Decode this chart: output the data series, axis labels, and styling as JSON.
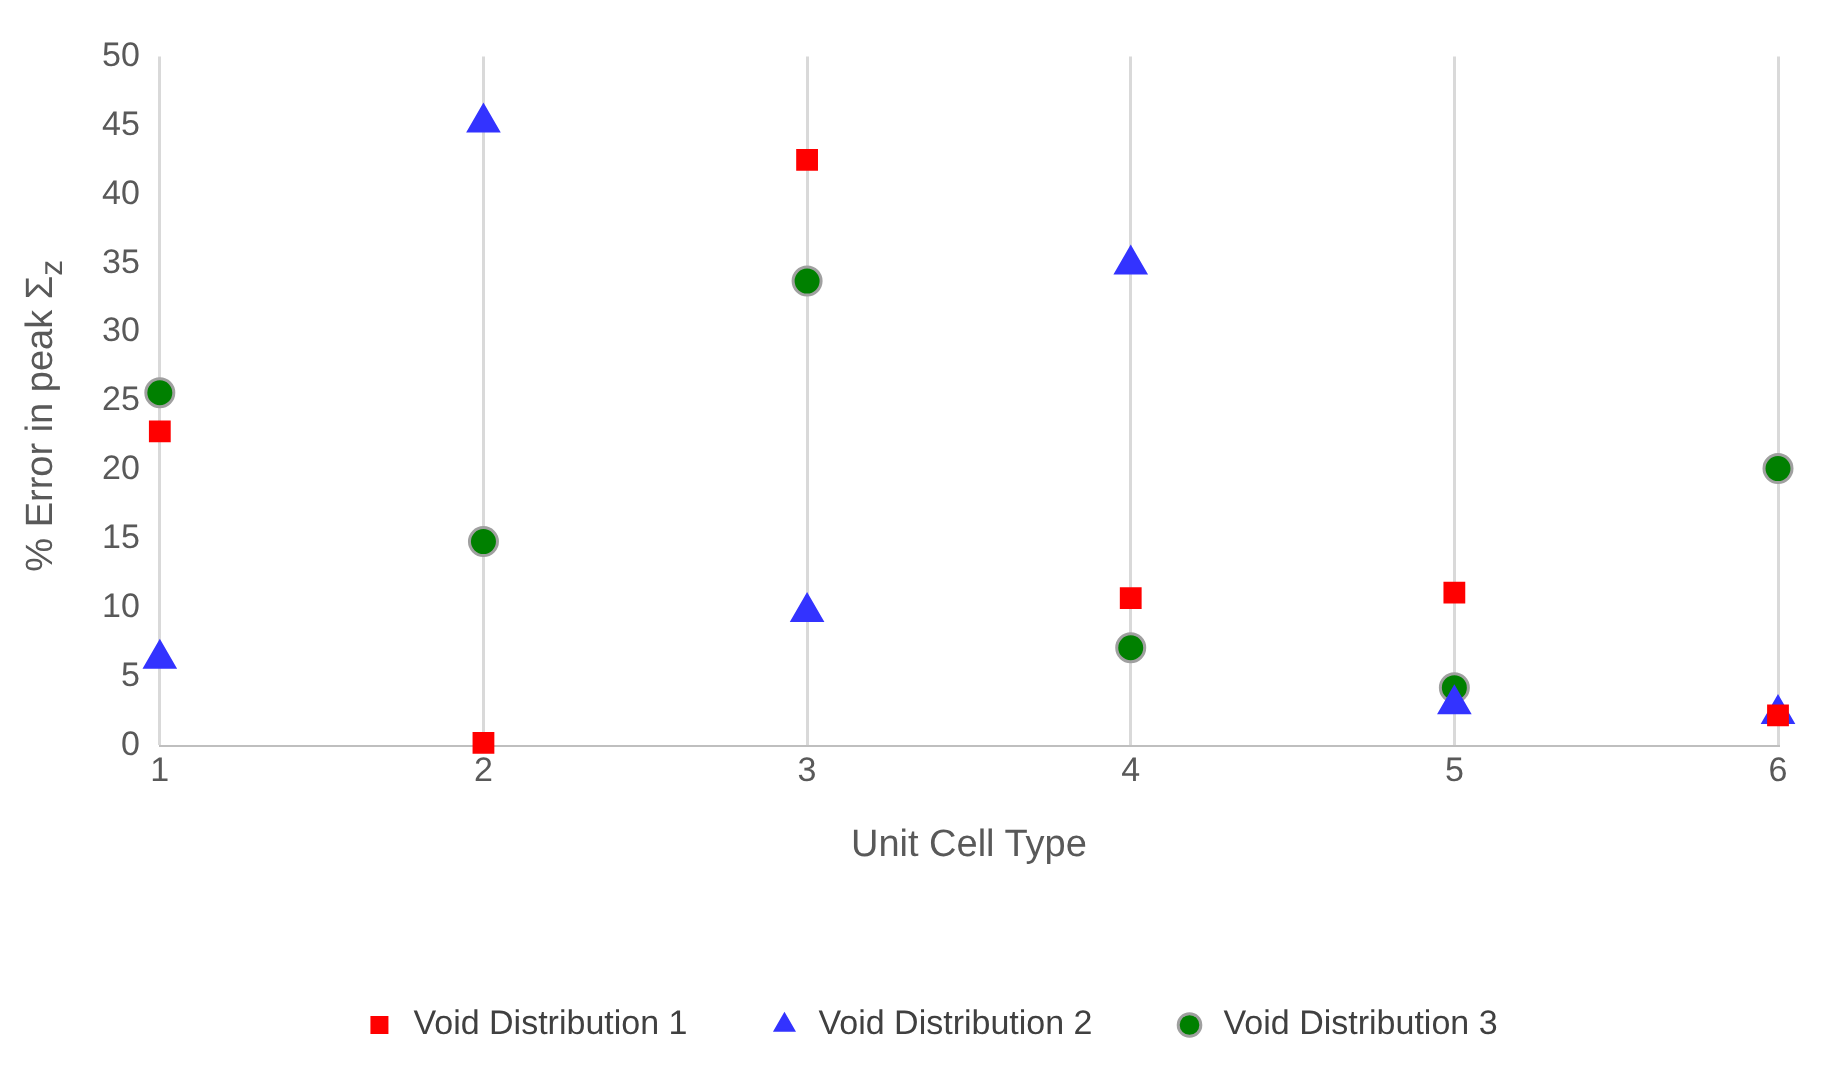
{
  "chart_data": {
    "type": "scatter",
    "xlabel": "Unit Cell Type",
    "ylabel": "% Error in peak Σ$_{z}$",
    "x": [
      1,
      2,
      3,
      4,
      5,
      6
    ],
    "xlim": [
      1,
      6
    ],
    "xticks": [
      1,
      2,
      3,
      4,
      5,
      6
    ],
    "ylim": [
      0,
      50
    ],
    "yticks": [
      0,
      5,
      10,
      15,
      20,
      25,
      30,
      35,
      40,
      45,
      50
    ],
    "grid": "x",
    "legend": "bottom",
    "series": [
      {
        "name": "Void Distribution 1",
        "color": "#ff0000",
        "marker": "square",
        "values": [
          22.8,
          0.2,
          42.5,
          10.7,
          11.1,
          2.2
        ]
      },
      {
        "name": "Void Distribution 2",
        "color": "#3333ff",
        "marker": "triangle",
        "values": [
          6.3,
          45.2,
          9.7,
          34.9,
          3.0,
          2.3
        ]
      },
      {
        "name": "Void Distribution 3",
        "color": "#008000",
        "marker": "circle",
        "values": [
          25.6,
          14.8,
          33.7,
          7.1,
          4.2,
          20.1
        ]
      }
    ]
  }
}
